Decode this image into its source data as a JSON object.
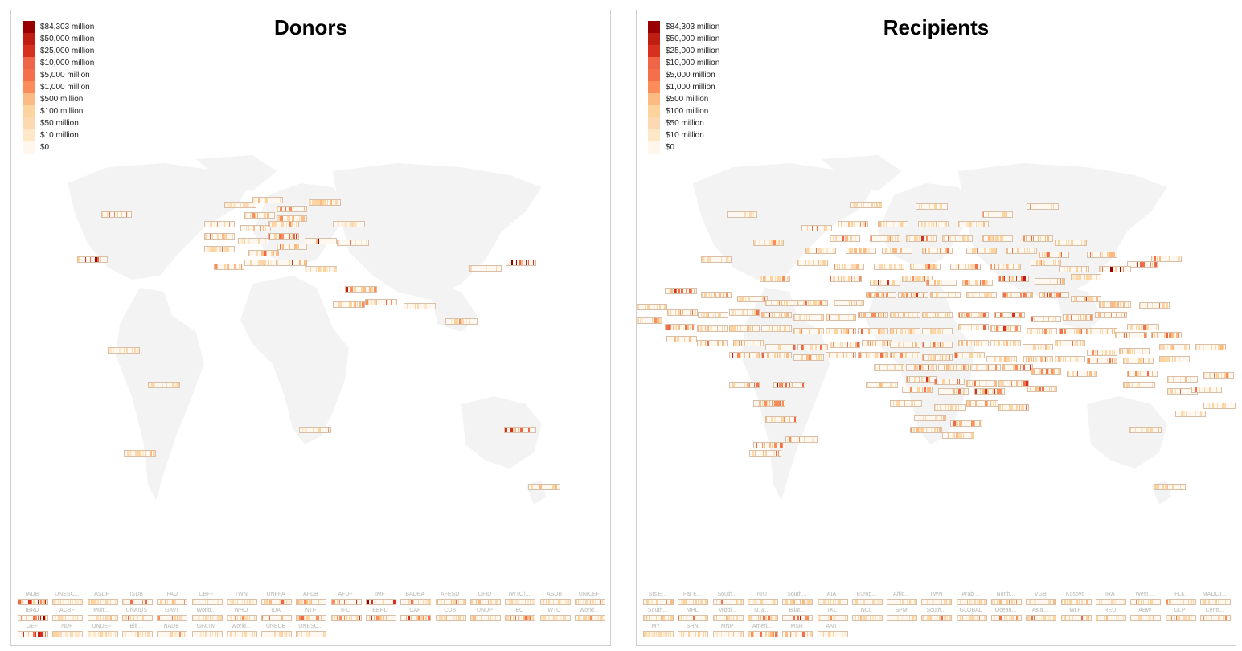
{
  "colors": {
    "scale": [
      "#fff7ec",
      "#fee8c8",
      "#fdd9b2",
      "#fdd49e",
      "#fdbb84",
      "#fc8d59",
      "#f5704a",
      "#ef6548",
      "#d7301f",
      "#c01d12",
      "#990000"
    ],
    "land": "#f3f3f3",
    "tile_border": "#d9bfa8"
  },
  "legend": [
    {
      "label": "$84,303 million"
    },
    {
      "label": "$50,000 million"
    },
    {
      "label": "$25,000 million"
    },
    {
      "label": "$10,000 million"
    },
    {
      "label": "$5,000 million"
    },
    {
      "label": "$1,000 million"
    },
    {
      "label": "$500 million"
    },
    {
      "label": "$100 million"
    },
    {
      "label": "$50 million"
    },
    {
      "label": "$10 million"
    },
    {
      "label": "$0"
    }
  ],
  "donors": {
    "title": "Donors",
    "institutions": [
      [
        "IADB",
        "UNESC...",
        "ASDF",
        "ISDB",
        "IFAD",
        "CBFF",
        "TWN",
        "UNFPA",
        "AFDB",
        "AFDF",
        "IMF",
        "BADEA",
        "AFESD",
        "OFID",
        "(WTO)...",
        "ASDB",
        "UNICEF"
      ],
      [
        "IBRD",
        "ACBF",
        "Multi...",
        "UNAIDS",
        "GAVI",
        "World...",
        "WHO",
        "IDA",
        "NTF",
        "IFC",
        "EBRD",
        "CAF",
        "CDB",
        "UNDP",
        "EC",
        "WTO",
        "World..."
      ],
      [
        "GEF",
        "NDF",
        "UNDEF",
        "Bill ...",
        "NADB",
        "GFATM",
        "World...",
        "UNECE",
        "UNESC..."
      ]
    ]
  },
  "recipients": {
    "title": "Recipients",
    "institutions": [
      [
        "Sts E...",
        "Far E...",
        "South...",
        "NIU",
        "South...",
        "AIA",
        "Europ...",
        "Afric...",
        "TWN",
        "Arab ...",
        "North...",
        "VGB",
        "Kosovo",
        "IRA",
        "West ...",
        "FLK",
        "MADCT..."
      ],
      [
        "South...",
        "MHL",
        "Middl...",
        "N. &...",
        "Bilat...",
        "TKL",
        "NCL",
        "SPM",
        "South...",
        "GLOBAL",
        "Ocean...",
        "Asia,...",
        "WLF",
        "REU",
        "ABW",
        "GLP",
        "Centr..."
      ],
      [
        "MYT",
        "SHN",
        "MNP",
        "Ameri...",
        "MSR",
        "ANT"
      ]
    ]
  }
}
